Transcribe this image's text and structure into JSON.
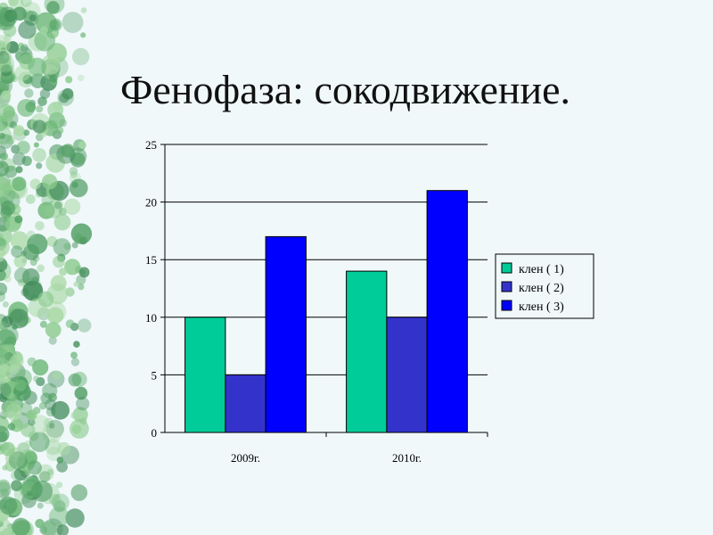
{
  "slide": {
    "title": "Фенофаза: сокодвижение."
  },
  "theme": {
    "background": "#f0f8fa",
    "foliage_colors": [
      "#4f9d63",
      "#6fb87a",
      "#8ccb8e",
      "#3f8a58",
      "#a9d9a6"
    ]
  },
  "chart_data": {
    "type": "bar",
    "categories": [
      "2009г.",
      "2010г."
    ],
    "series": [
      {
        "name": "клен ( 1)",
        "values": [
          10,
          14
        ],
        "color": "#00cc99"
      },
      {
        "name": "клен ( 2)",
        "values": [
          5,
          10
        ],
        "color": "#3333cc"
      },
      {
        "name": "клен ( 3)",
        "values": [
          17,
          21
        ],
        "color": "#0000ff"
      }
    ],
    "yticks": [
      "0",
      "5",
      "10",
      "15",
      "20",
      "25"
    ],
    "ylim": [
      0,
      25
    ],
    "grid": true,
    "legend_position": "right"
  }
}
